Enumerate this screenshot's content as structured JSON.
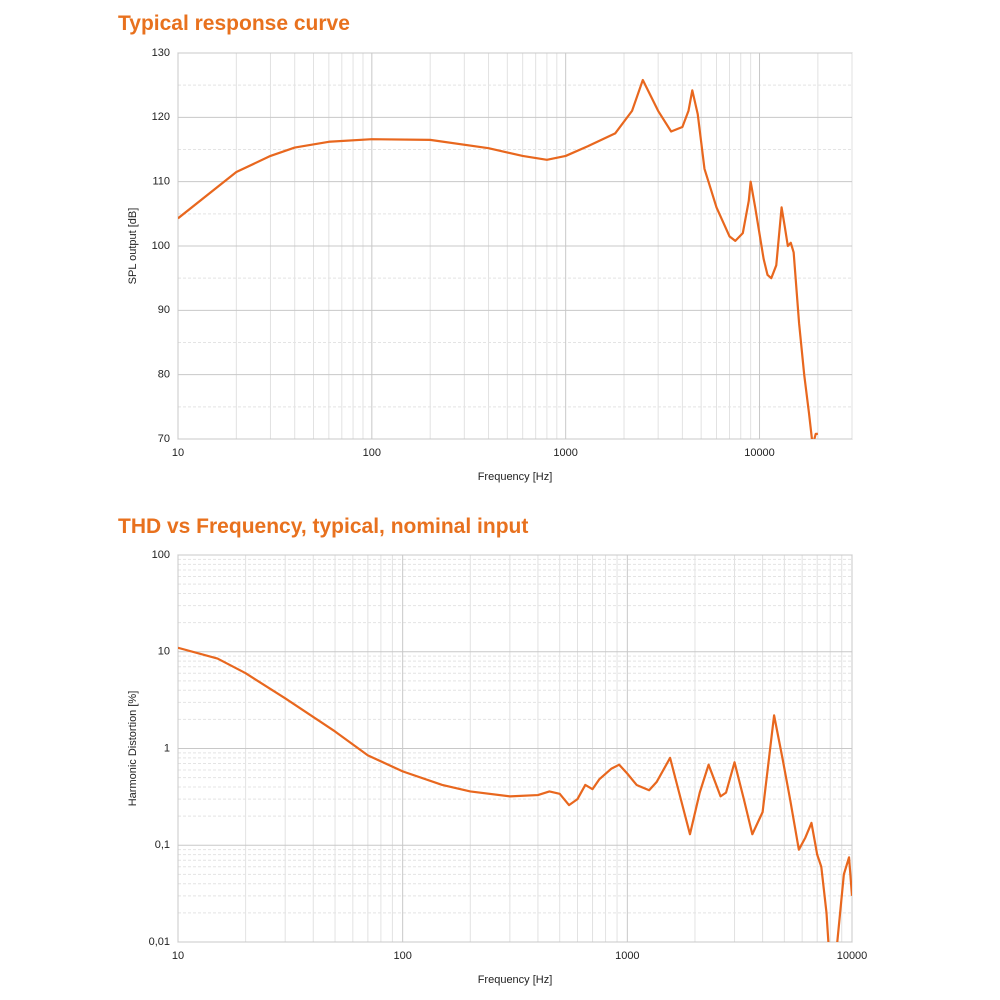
{
  "chart_data": [
    {
      "type": "line",
      "title": "Typical response curve",
      "xlabel": "Frequency [Hz]",
      "ylabel": "SPL output [dB]",
      "xscale": "log",
      "yscale": "linear",
      "grid": true,
      "minor_grid": true,
      "xlim": [
        10,
        30000
      ],
      "xticks": [
        10,
        100,
        1000,
        10000
      ],
      "ylim": [
        70,
        130
      ],
      "yticks": [
        70,
        80,
        90,
        100,
        110,
        120,
        130
      ],
      "x": [
        10,
        20,
        30,
        40,
        60,
        100,
        200,
        400,
        600,
        800,
        1000,
        1300,
        1800,
        2200,
        2500,
        3000,
        3500,
        4000,
        4300,
        4500,
        4800,
        5200,
        6000,
        7000,
        7500,
        8200,
        8800,
        9000,
        9500,
        10500,
        11000,
        11500,
        12200,
        13000,
        13500,
        14000,
        14500,
        15000,
        16000,
        17000,
        18000,
        18800,
        19500,
        20000
      ],
      "series": [
        {
          "name": "SPL",
          "color": "#e8671e",
          "values": [
            104.3,
            111.5,
            114,
            115.3,
            116.2,
            116.6,
            116.5,
            115.2,
            114,
            113.4,
            114,
            115.5,
            117.5,
            121,
            125.8,
            121,
            117.8,
            118.5,
            121,
            124.2,
            120.5,
            112,
            106,
            101.5,
            100.8,
            102,
            107,
            110,
            106,
            98,
            95.5,
            95,
            97,
            106,
            103,
            100,
            100.5,
            99,
            88,
            80,
            74,
            69,
            70.8,
            70.8
          ]
        }
      ]
    },
    {
      "type": "line",
      "title": "THD vs Frequency, typical, nominal input",
      "xlabel": "Frequency [Hz]",
      "ylabel": "Harmonic Distortion [%]",
      "xscale": "log",
      "yscale": "log",
      "grid": true,
      "minor_grid": true,
      "xlim": [
        10,
        10000
      ],
      "xticks": [
        10,
        100,
        1000,
        10000
      ],
      "ylim": [
        0.01,
        100
      ],
      "yticks": [
        {
          "value": 0.01,
          "label": "0,01"
        },
        {
          "value": 0.1,
          "label": "0,1"
        },
        1,
        10,
        100
      ],
      "x": [
        10,
        15,
        20,
        30,
        50,
        70,
        100,
        150,
        200,
        300,
        400,
        450,
        500,
        550,
        600,
        650,
        700,
        750,
        850,
        920,
        1000,
        1100,
        1250,
        1350,
        1550,
        1700,
        1900,
        2100,
        2300,
        2600,
        2750,
        3000,
        3300,
        3600,
        4000,
        4500,
        4900,
        5300,
        5800,
        6200,
        6600,
        7000,
        7300,
        7700,
        7900,
        8200,
        8600,
        9200,
        9700,
        10000
      ],
      "series": [
        {
          "name": "THD",
          "color": "#e8671e",
          "values": [
            11,
            8.5,
            6,
            3.3,
            1.5,
            0.85,
            0.58,
            0.42,
            0.36,
            0.32,
            0.33,
            0.36,
            0.34,
            0.26,
            0.3,
            0.42,
            0.38,
            0.48,
            0.62,
            0.68,
            0.55,
            0.42,
            0.37,
            0.45,
            0.8,
            0.35,
            0.13,
            0.35,
            0.68,
            0.32,
            0.35,
            0.72,
            0.3,
            0.13,
            0.22,
            2.2,
            0.8,
            0.3,
            0.09,
            0.12,
            0.17,
            0.08,
            0.06,
            0.02,
            0.008,
            0.008,
            0.01,
            0.05,
            0.075,
            0.03
          ]
        }
      ]
    }
  ]
}
